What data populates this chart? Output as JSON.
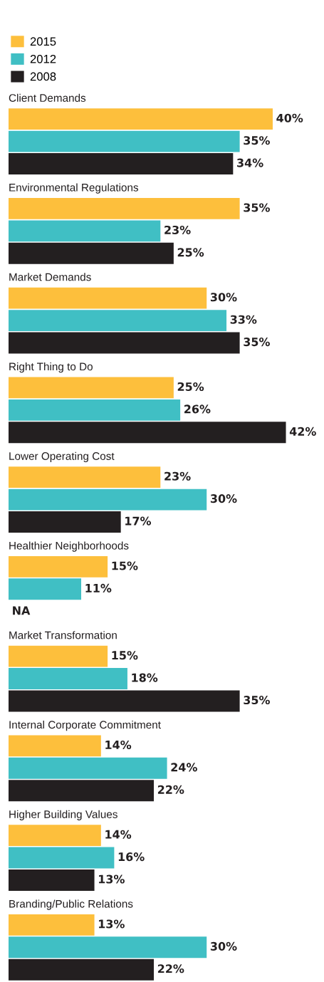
{
  "chart_data": {
    "type": "bar",
    "orientation": "horizontal",
    "categories": [
      "Client Demands",
      "Environmental Regulations",
      "Market Demands",
      "Right Thing to Do",
      "Lower Operating Cost",
      "Healthier Neighborhoods",
      "Market Transformation",
      "Internal Corporate Commitment",
      "Higher Building Values",
      "Branding/Public Relations"
    ],
    "series": [
      {
        "name": "2015",
        "color": "#fdbf3c",
        "values": [
          40,
          35,
          30,
          25,
          23,
          15,
          15,
          14,
          14,
          13
        ],
        "value_labels": [
          "40%",
          "35%",
          "30%",
          "25%",
          "23%",
          "15%",
          "15%",
          "14%",
          "14%",
          "13%"
        ]
      },
      {
        "name": "2012",
        "color": "#40bfc4",
        "values": [
          35,
          23,
          33,
          26,
          30,
          11,
          18,
          24,
          16,
          30
        ],
        "value_labels": [
          "35%",
          "23%",
          "33%",
          "26%",
          "30%",
          "11%",
          "18%",
          "24%",
          "16%",
          "30%"
        ]
      },
      {
        "name": "2008",
        "color": "#231f20",
        "values": [
          34,
          25,
          35,
          42,
          17,
          null,
          35,
          22,
          13,
          22
        ],
        "value_labels": [
          "34%",
          "25%",
          "35%",
          "42%",
          "17%",
          "NA",
          "35%",
          "22%",
          "13%",
          "22%"
        ]
      }
    ],
    "tick_labels": false,
    "legend": "top left"
  }
}
